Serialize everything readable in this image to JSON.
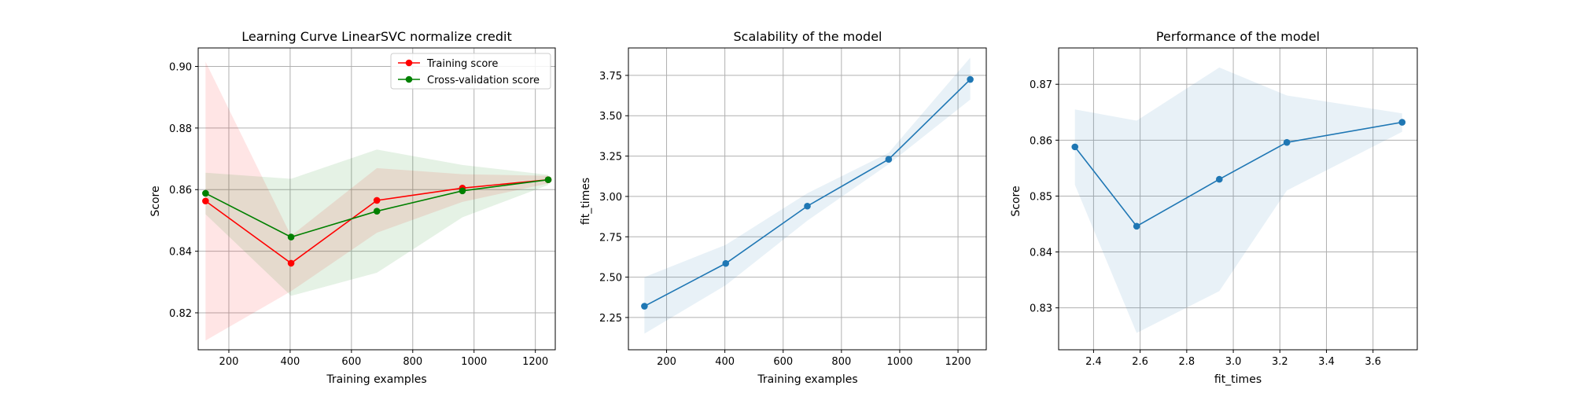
{
  "chart_data": [
    {
      "type": "line",
      "title": "Learning Curve LinearSVC normalize credit",
      "xlabel": "Training examples",
      "ylabel": "Score",
      "xlim": [
        100,
        1265
      ],
      "ylim": [
        0.808,
        0.906
      ],
      "xticks": [
        200,
        400,
        600,
        800,
        1000,
        1200
      ],
      "xtick_labels": [
        "200",
        "400",
        "600",
        "800",
        "1000",
        "1200"
      ],
      "yticks": [
        0.82,
        0.84,
        0.86,
        0.88,
        0.9
      ],
      "ytick_labels": [
        "0.82",
        "0.84",
        "0.86",
        "0.88",
        "0.90"
      ],
      "grid": true,
      "legend": "top-right",
      "x": [
        124,
        403,
        683,
        962,
        1242
      ],
      "series": [
        {
          "name": "Training score",
          "color": "#ff0000",
          "fill_color": "#ff0000",
          "values": [
            0.8563,
            0.8361,
            0.8565,
            0.8605,
            0.8632
          ],
          "band_lower": [
            0.811,
            0.827,
            0.846,
            0.856,
            0.862
          ],
          "band_upper": [
            0.9015,
            0.845,
            0.867,
            0.865,
            0.8645
          ]
        },
        {
          "name": "Cross-validation score",
          "color": "#008000",
          "fill_color": "#008000",
          "values": [
            0.8588,
            0.8446,
            0.853,
            0.8596,
            0.8632
          ],
          "band_lower": [
            0.852,
            0.8255,
            0.833,
            0.851,
            0.8615
          ],
          "band_upper": [
            0.8655,
            0.8635,
            0.873,
            0.868,
            0.8648
          ]
        }
      ]
    },
    {
      "type": "line",
      "title": "Scalability of the model",
      "xlabel": "Training examples",
      "ylabel": "fit_times",
      "xlim": [
        69,
        1297
      ],
      "ylim": [
        2.05,
        3.92
      ],
      "xticks": [
        200,
        400,
        600,
        800,
        1000,
        1200
      ],
      "xtick_labels": [
        "200",
        "400",
        "600",
        "800",
        "1000",
        "1200"
      ],
      "yticks": [
        2.25,
        2.5,
        2.75,
        3.0,
        3.25,
        3.5,
        3.75
      ],
      "ytick_labels": [
        "2.25",
        "2.50",
        "2.75",
        "3.00",
        "3.25",
        "3.50",
        "3.75"
      ],
      "grid": true,
      "x": [
        124,
        403,
        683,
        962,
        1242
      ],
      "series": [
        {
          "color": "#1f77b4",
          "fill_color": "#1f77b4",
          "values": [
            2.32,
            2.585,
            2.94,
            3.23,
            3.725
          ],
          "band_lower": [
            2.15,
            2.45,
            2.85,
            3.2,
            3.6
          ],
          "band_upper": [
            2.5,
            2.7,
            3.02,
            3.27,
            3.86
          ]
        }
      ]
    },
    {
      "type": "line",
      "title": "Performance of the model",
      "xlabel": "fit_times",
      "ylabel": "Score",
      "xlim": [
        2.25,
        3.79
      ],
      "ylim": [
        0.8225,
        0.8765
      ],
      "xticks": [
        2.4,
        2.6,
        2.8,
        3.0,
        3.2,
        3.4,
        3.6
      ],
      "xtick_labels": [
        "2.4",
        "2.6",
        "2.8",
        "3.0",
        "3.2",
        "3.4",
        "3.6"
      ],
      "yticks": [
        0.83,
        0.84,
        0.85,
        0.86,
        0.87
      ],
      "ytick_labels": [
        "0.83",
        "0.84",
        "0.85",
        "0.86",
        "0.87"
      ],
      "grid": true,
      "x": [
        2.32,
        2.585,
        2.94,
        3.23,
        3.725
      ],
      "series": [
        {
          "color": "#1f77b4",
          "fill_color": "#1f77b4",
          "values": [
            0.8588,
            0.8446,
            0.853,
            0.8596,
            0.8632
          ],
          "band_lower": [
            0.852,
            0.8255,
            0.833,
            0.851,
            0.8615
          ],
          "band_upper": [
            0.8655,
            0.8635,
            0.873,
            0.868,
            0.8648
          ]
        }
      ]
    }
  ]
}
